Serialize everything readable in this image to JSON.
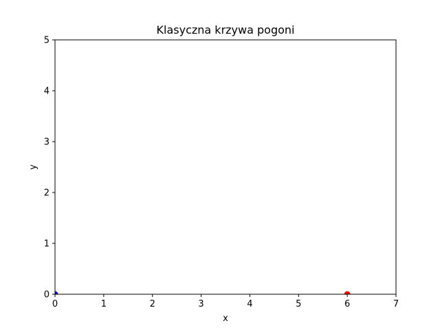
{
  "chart_data": {
    "type": "scatter",
    "title": "Klasyczna krzywa pogoni",
    "xlabel": "x",
    "ylabel": "y",
    "xlim": [
      0,
      7
    ],
    "ylim": [
      0,
      5
    ],
    "xticks": [
      0,
      1,
      2,
      3,
      4,
      5,
      6,
      7
    ],
    "yticks": [
      0,
      1,
      2,
      3,
      4,
      5
    ],
    "grid": false,
    "series": [
      {
        "x": [
          0
        ],
        "y": [
          0
        ],
        "color": "#0000ff"
      },
      {
        "x": [
          6
        ],
        "y": [
          0
        ],
        "color": "#ff0000"
      }
    ]
  }
}
